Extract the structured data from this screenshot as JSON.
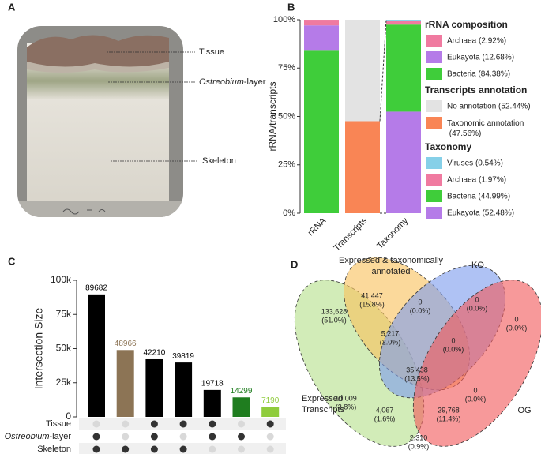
{
  "panel_labels": [
    "A",
    "B",
    "C",
    "D"
  ],
  "photo": {
    "labels": {
      "tissue": "Tissue",
      "ostreobium": {
        "italic": "Ostreobium",
        "rest": "-layer"
      },
      "skeleton": "Skeleton"
    }
  },
  "chart_data": [
    {
      "type": "stacked_bar",
      "y_label": "rRNA/transcripts",
      "categories": [
        "rRNA",
        "Transcripts",
        "Taxonomy"
      ],
      "ylim": [
        0,
        100
      ],
      "yticks": [
        {
          "value": 0,
          "label": "0%"
        },
        {
          "value": 25,
          "label": "25%"
        },
        {
          "value": 50,
          "label": "50%"
        },
        {
          "value": 75,
          "label": "75%"
        },
        {
          "value": 100,
          "label": "100%"
        }
      ],
      "series_groups": [
        {
          "title": "rRNA composition",
          "series": [
            {
              "name": "Archaea (2.92%)",
              "color": "#f07aa0",
              "values": [
                2.92,
                null,
                null
              ]
            },
            {
              "name": "Eukayota (12.68%)",
              "color": "#b57be8",
              "values": [
                12.68,
                null,
                null
              ]
            },
            {
              "name": "Bacteria (84.38%)",
              "color": "#3fcd3a",
              "values": [
                84.38,
                null,
                null
              ]
            }
          ]
        },
        {
          "title": "Transcripts annotation",
          "series": [
            {
              "name": "No annotation (52.44%)",
              "color": "#e3e3e3",
              "values": [
                null,
                52.44,
                null
              ]
            },
            {
              "name": "Taxonomic annotation (47.56%)",
              "color": "#f98555",
              "values": [
                null,
                47.56,
                null
              ]
            }
          ]
        },
        {
          "title": "Taxonomy",
          "series": [
            {
              "name": "Viruses (0.54%)",
              "color": "#86d0e8",
              "values": [
                null,
                null,
                0.54
              ]
            },
            {
              "name": "Archaea (1.97%)",
              "color": "#f07aa0",
              "values": [
                null,
                null,
                1.97
              ]
            },
            {
              "name": "Bacteria (44.99%)",
              "color": "#3fcd3a",
              "values": [
                null,
                null,
                44.99
              ]
            },
            {
              "name": "Eukayota (52.48%)",
              "color": "#b57be8",
              "values": [
                null,
                null,
                52.48
              ]
            }
          ]
        }
      ]
    },
    {
      "type": "upset",
      "y_label": "Intersection Size",
      "values": [
        89682,
        48966,
        42210,
        39819,
        19718,
        14299,
        7190
      ],
      "colors": [
        "#000000",
        "#8c7455",
        "#000000",
        "#000000",
        "#000000",
        "#1f7d1f",
        "#8fcc3c"
      ],
      "ylim": [
        0,
        100000
      ],
      "yticks": [
        0,
        {
          "value": 25000,
          "label": "25k"
        },
        {
          "value": 50000,
          "label": "50k"
        },
        {
          "value": 75000,
          "label": "75k"
        },
        {
          "value": 100000,
          "label": "100k"
        }
      ],
      "sets": [
        {
          "name": "Tissue",
          "membership": [
            false,
            false,
            true,
            true,
            true,
            false,
            true
          ]
        },
        {
          "name": {
            "italic": "Ostreobium",
            "rest": "-layer"
          },
          "membership": [
            true,
            false,
            true,
            false,
            true,
            true,
            false
          ]
        },
        {
          "name": "Skeleton",
          "membership": [
            true,
            true,
            true,
            true,
            false,
            false,
            false
          ]
        }
      ]
    }
  ],
  "venn": {
    "sets": [
      {
        "label": [
          "Expressed",
          "Transcripts"
        ],
        "color": "#b6e08c"
      },
      {
        "label": [
          "Expressed & taxonomically",
          "annotated"
        ],
        "color": "#f8c25e"
      },
      {
        "label": [
          "KO"
        ],
        "color": "#7e9ded"
      },
      {
        "label": [
          "OG"
        ],
        "color": "#f25a5c"
      }
    ],
    "regions": [
      {
        "count": "133,628",
        "percent": "(51.0%)"
      },
      {
        "count": "41,447",
        "percent": "(15.8%)"
      },
      {
        "count": "0",
        "percent": "(0.0%)"
      },
      {
        "count": "0",
        "percent": "(0.0%)"
      },
      {
        "count": "0",
        "percent": "(0.0%)"
      },
      {
        "count": "5,217",
        "percent": "(2.0%)"
      },
      {
        "count": "0",
        "percent": "(0.0%)"
      },
      {
        "count": "35,438",
        "percent": "(13.5%)"
      },
      {
        "count": "10,009",
        "percent": "(3.8%)"
      },
      {
        "count": "0",
        "percent": "(0.0%)"
      },
      {
        "count": "4,067",
        "percent": "(1.6%)"
      },
      {
        "count": "29,768",
        "percent": "(11.4%)"
      },
      {
        "count": "2,310",
        "percent": "(0.9%)"
      }
    ]
  }
}
